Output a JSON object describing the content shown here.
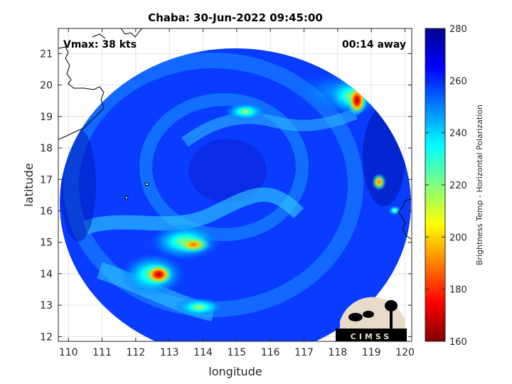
{
  "title": "Chaba: 30-Jun-2022 09:45:00",
  "vmax": "Vmax: 38 kts",
  "time_away": "00:14 away",
  "xlabel": "longitude",
  "ylabel": "latitude",
  "x_ticks": [
    "110",
    "111",
    "112",
    "113",
    "114",
    "115",
    "116",
    "117",
    "118",
    "119",
    "120"
  ],
  "y_ticks": [
    "21",
    "20",
    "19",
    "18",
    "17",
    "16",
    "15",
    "14",
    "13",
    "12"
  ],
  "xlim": [
    109.7,
    120.2
  ],
  "ylim": [
    11.85,
    21.8
  ],
  "colorbar": {
    "label": "Brightness Temp - Horizontal Polarization",
    "ticks": [
      "280",
      "260",
      "240",
      "220",
      "200",
      "180",
      "160"
    ],
    "range": [
      160,
      280
    ],
    "colormap": [
      "#00008f",
      "#0000ff",
      "#0080ff",
      "#00ffff",
      "#80ff80",
      "#ffff00",
      "#ff8000",
      "#ff0000",
      "#800000"
    ]
  },
  "logo_text": "CIMSS",
  "map": {
    "swath_center": {
      "lon": 114.9,
      "lat": 16.6
    },
    "swath_radius_lon": 5.15,
    "swath_radius_lat": 4.9,
    "background_temp": 265,
    "features": [
      {
        "name": "cold-core-east",
        "lon": 118.5,
        "lat": 19.5,
        "temp": 172
      },
      {
        "name": "cold-core-south-west",
        "lon": 112.6,
        "lat": 14.0,
        "temp": 180
      },
      {
        "name": "cold-core-south",
        "lon": 113.7,
        "lat": 14.95,
        "temp": 190
      },
      {
        "name": "band-north",
        "lon": 115.1,
        "lat": 19.2,
        "temp": 215
      },
      {
        "name": "spot-east",
        "lon": 119.2,
        "lat": 16.95,
        "temp": 205
      },
      {
        "name": "band-south",
        "lon": 114.2,
        "lat": 13.0,
        "temp": 222
      }
    ]
  }
}
